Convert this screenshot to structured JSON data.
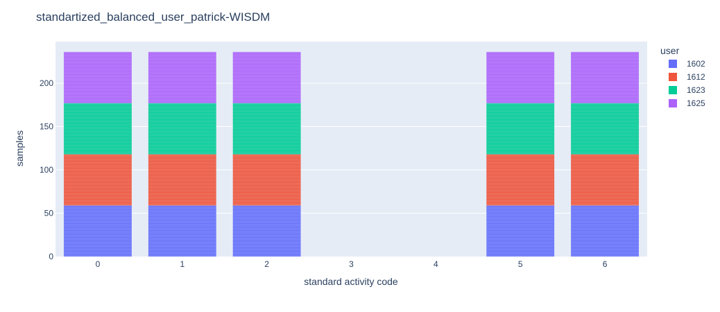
{
  "chart_data": {
    "type": "bar",
    "barmode": "stack",
    "title": "standartized_balanced_user_patrick-WISDM",
    "xlabel": "standard activity code",
    "ylabel": "samples",
    "categories": [
      "0",
      "1",
      "2",
      "3",
      "4",
      "5",
      "6"
    ],
    "yticks": [
      0,
      50,
      100,
      150,
      200
    ],
    "ylim": [
      0,
      248
    ],
    "grid": true,
    "legend_title": "user",
    "legend_position": "right",
    "segment_unit": 1,
    "series": [
      {
        "name": "1602",
        "color": "#636efa",
        "values": [
          59,
          59,
          59,
          0,
          0,
          59,
          59
        ]
      },
      {
        "name": "1612",
        "color": "#ef553b",
        "values": [
          59,
          59,
          59,
          0,
          0,
          59,
          59
        ]
      },
      {
        "name": "1623",
        "color": "#00cc96",
        "values": [
          59,
          59,
          59,
          0,
          0,
          59,
          59
        ]
      },
      {
        "name": "1625",
        "color": "#ab63fa",
        "values": [
          59,
          59,
          59,
          0,
          0,
          59,
          59
        ]
      }
    ]
  }
}
